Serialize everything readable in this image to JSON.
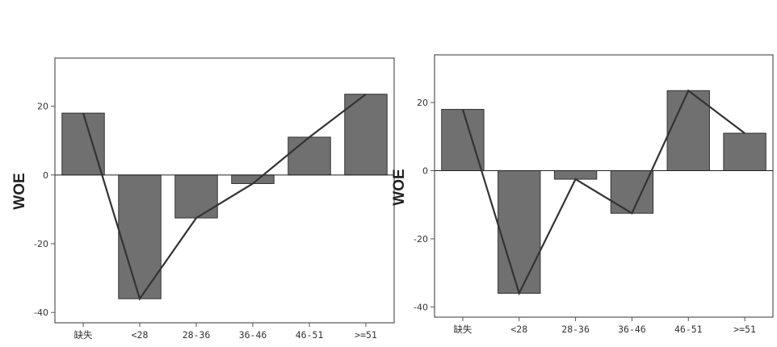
{
  "chart_data": [
    {
      "type": "bar",
      "ylabel": "WOE",
      "xlabel": "",
      "ylim": [
        -43,
        34
      ],
      "yticks": [
        "20",
        "0",
        "-20",
        "-40"
      ],
      "categories": [
        "缺失",
        "<28",
        "28-36",
        "36-46",
        "46-51",
        ">=51"
      ],
      "values": [
        18,
        -36,
        -12.5,
        -2.5,
        11,
        23.5
      ],
      "line_values": [
        18,
        -36,
        -12.5,
        -2.5,
        11,
        23.5
      ],
      "bar_color": "#707070",
      "line_color": "#333333"
    },
    {
      "type": "bar",
      "ylabel": "WOE",
      "xlabel": "",
      "ylim": [
        -43,
        34
      ],
      "yticks": [
        "20",
        "0",
        "-20",
        "-40"
      ],
      "categories": [
        "缺失",
        "<28",
        "28-36",
        "36-46",
        "46-51",
        ">=51"
      ],
      "values": [
        18,
        -36,
        -2.5,
        -12.5,
        23.5,
        11
      ],
      "line_values": [
        18,
        -36,
        -2.5,
        -12.5,
        23.5,
        11
      ],
      "bar_color": "#707070",
      "line_color": "#333333"
    }
  ]
}
